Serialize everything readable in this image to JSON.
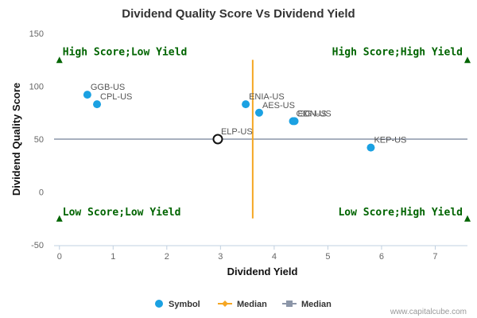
{
  "chart_data": {
    "type": "scatter",
    "title": "Dividend Quality Score Vs Dividend Yield",
    "xlabel": "Dividend Yield",
    "ylabel": "Dividend Quality Score",
    "xlim": [
      -0.1,
      7.6
    ],
    "ylim": [
      -50,
      150
    ],
    "x_ticks": [
      0,
      1,
      2,
      3,
      4,
      5,
      6,
      7
    ],
    "y_ticks": [
      -50,
      0,
      50,
      100,
      150
    ],
    "grid": false,
    "series": [
      {
        "name": "Symbol",
        "color": "#1ba1e2",
        "points": [
          {
            "label": "GGB-US",
            "x": 0.52,
            "y": 92
          },
          {
            "label": "CPL-US",
            "x": 0.7,
            "y": 83
          },
          {
            "label": "ENIA-US",
            "x": 3.47,
            "y": 83
          },
          {
            "label": "AES-US",
            "x": 3.72,
            "y": 75
          },
          {
            "label": "CIG-US",
            "x": 4.35,
            "y": 67
          },
          {
            "label": "EDN-US",
            "x": 4.38,
            "y": 67
          },
          {
            "label": "KEP-US",
            "x": 5.8,
            "y": 42
          }
        ]
      }
    ],
    "highlight": {
      "label": "ELP-US",
      "x": 2.95,
      "y": 50
    },
    "median_x": {
      "name": "Median",
      "value": 3.6,
      "color": "#f5a623"
    },
    "median_y": {
      "name": "Median",
      "value": 50,
      "color": "#8c96a8"
    },
    "quadrants": {
      "top_left": "High Score;Low Yield",
      "top_right": "High Score;High Yield",
      "bottom_left": "Low Score;Low Yield",
      "bottom_right": "Low Score;High Yield"
    },
    "legend": {
      "position": "bottom",
      "items": [
        "Symbol",
        "Median",
        "Median"
      ]
    },
    "credit": "www.capitalcube.com"
  }
}
